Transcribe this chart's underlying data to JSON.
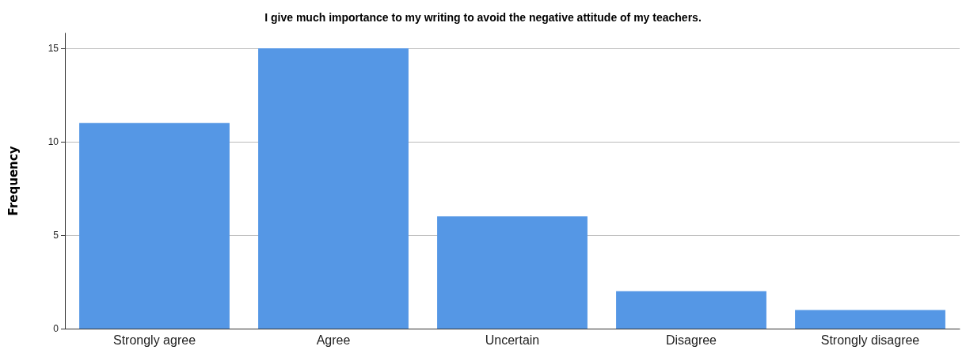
{
  "chart_data": {
    "type": "bar",
    "title": "I give much importance to my writing to avoid the negative attitude of my teachers.",
    "ylabel": "Frequency",
    "categories": [
      "Strongly agree",
      "Agree",
      "Uncertain",
      "Disagree",
      "Strongly disagree"
    ],
    "values": [
      11,
      15,
      6,
      2,
      1
    ],
    "color": "#5597e5",
    "ylim": [
      0,
      15.8
    ],
    "yticks": [
      0,
      5,
      10,
      15
    ],
    "grid": "y"
  }
}
